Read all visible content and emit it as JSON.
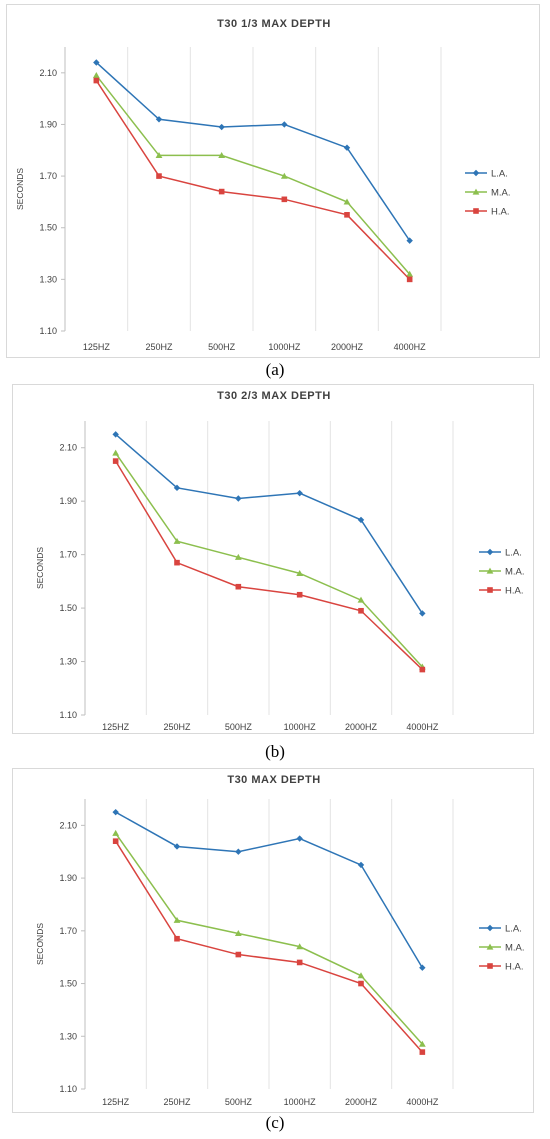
{
  "chart_data": [
    {
      "type": "line",
      "title": "T30  1/3 MAX DEPTH",
      "caption": "(a)",
      "ylabel": "SECONDS",
      "xlabel": "",
      "categories": [
        "125HZ",
        "250HZ",
        "500HZ",
        "1000HZ",
        "2000HZ",
        "4000HZ"
      ],
      "ylim": [
        1.1,
        2.2
      ],
      "yticks": [
        "1.10",
        "1.30",
        "1.50",
        "1.70",
        "1.90",
        "2.10"
      ],
      "grid": "vertical",
      "legend_position": "right",
      "series": [
        {
          "name": "L.A.",
          "color": "#2e75b6",
          "marker": "diamond",
          "values": [
            2.14,
            1.92,
            1.89,
            1.9,
            1.81,
            1.45
          ]
        },
        {
          "name": "M.A.",
          "color": "#8cbf4e",
          "marker": "triangle",
          "values": [
            2.09,
            1.78,
            1.78,
            1.7,
            1.6,
            1.32
          ]
        },
        {
          "name": "H.A.",
          "color": "#d9443f",
          "marker": "square",
          "values": [
            2.07,
            1.7,
            1.64,
            1.61,
            1.55,
            1.3
          ]
        }
      ]
    },
    {
      "type": "line",
      "title": "T30  2/3 MAX DEPTH",
      "caption": "(b)",
      "ylabel": "SECONDS",
      "xlabel": "",
      "categories": [
        "125HZ",
        "250HZ",
        "500HZ",
        "1000HZ",
        "2000HZ",
        "4000HZ"
      ],
      "ylim": [
        1.1,
        2.2
      ],
      "yticks": [
        "1.10",
        "1.30",
        "1.50",
        "1.70",
        "1.90",
        "2.10"
      ],
      "grid": "vertical",
      "legend_position": "right",
      "series": [
        {
          "name": "L.A.",
          "color": "#2e75b6",
          "marker": "diamond",
          "values": [
            2.15,
            1.95,
            1.91,
            1.93,
            1.83,
            1.48
          ]
        },
        {
          "name": "M.A.",
          "color": "#8cbf4e",
          "marker": "triangle",
          "values": [
            2.08,
            1.75,
            1.69,
            1.63,
            1.53,
            1.28
          ]
        },
        {
          "name": "H.A.",
          "color": "#d9443f",
          "marker": "square",
          "values": [
            2.05,
            1.67,
            1.58,
            1.55,
            1.49,
            1.27
          ]
        }
      ]
    },
    {
      "type": "line",
      "title": "T30 MAX DEPTH",
      "caption": "(c)",
      "ylabel": "SECONDS",
      "xlabel": "",
      "categories": [
        "125HZ",
        "250HZ",
        "500HZ",
        "1000HZ",
        "2000HZ",
        "4000HZ"
      ],
      "ylim": [
        1.1,
        2.2
      ],
      "yticks": [
        "1.10",
        "1.30",
        "1.50",
        "1.70",
        "1.90",
        "2.10"
      ],
      "grid": "vertical",
      "legend_position": "right",
      "series": [
        {
          "name": "L.A.",
          "color": "#2e75b6",
          "marker": "diamond",
          "values": [
            2.15,
            2.02,
            2.0,
            2.05,
            1.95,
            1.56
          ]
        },
        {
          "name": "M.A.",
          "color": "#8cbf4e",
          "marker": "triangle",
          "values": [
            2.07,
            1.74,
            1.69,
            1.64,
            1.53,
            1.27
          ]
        },
        {
          "name": "H.A.",
          "color": "#d9443f",
          "marker": "square",
          "values": [
            2.04,
            1.67,
            1.61,
            1.58,
            1.5,
            1.24
          ]
        }
      ]
    }
  ]
}
